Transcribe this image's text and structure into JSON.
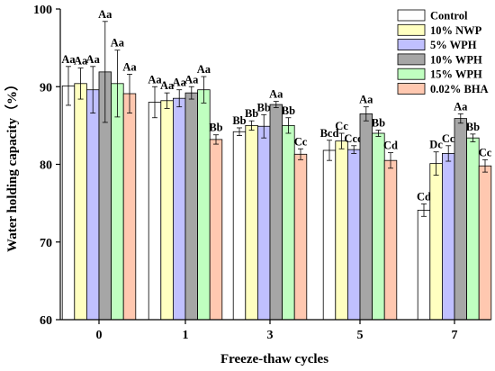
{
  "chart_data": {
    "type": "bar",
    "title": "",
    "xlabel": "Freeze-thaw cycles",
    "ylabel": "Water holding capacity（%）",
    "ylim": [
      60,
      100
    ],
    "yticks": [
      60,
      70,
      80,
      90,
      100
    ],
    "categories": [
      "0",
      "1",
      "3",
      "5",
      "7"
    ],
    "legend_position": "top-right",
    "grid": false,
    "series": [
      {
        "name": "Control",
        "color": "#ffffff",
        "values": [
          90.1,
          88.0,
          84.2,
          81.8,
          74.1
        ],
        "errors": [
          2.5,
          2.0,
          0.5,
          1.3,
          0.8
        ],
        "labels": [
          "Aa",
          "Aa",
          "Bb",
          "Bcd",
          "Cd"
        ]
      },
      {
        "name": "10% NWP",
        "color": "#ffffc0",
        "values": [
          90.4,
          88.2,
          85.0,
          83.0,
          80.1
        ],
        "errors": [
          2.0,
          1.0,
          0.6,
          1.0,
          1.5
        ],
        "labels": [
          "Aa",
          "Aa",
          "Bb",
          "Cc",
          "Dc"
        ]
      },
      {
        "name": "5% WPH",
        "color": "#c0c0ff",
        "values": [
          89.6,
          88.5,
          84.9,
          81.9,
          81.4
        ],
        "errors": [
          3.0,
          1.1,
          1.5,
          0.5,
          1.0
        ],
        "labels": [
          "Aa",
          "Aa",
          "Bb",
          "Ccd",
          "Cc"
        ]
      },
      {
        "name": "10% WPH",
        "color": "#a6a6a6",
        "values": [
          91.9,
          89.2,
          87.7,
          86.5,
          85.9
        ],
        "errors": [
          6.5,
          0.8,
          0.4,
          0.9,
          0.6
        ],
        "labels": [
          "Aa",
          "Aa",
          "Aa",
          "Aa",
          "Aa"
        ]
      },
      {
        "name": "15% WPH",
        "color": "#c0ffc0",
        "values": [
          90.4,
          89.6,
          85.0,
          84.0,
          83.4
        ],
        "errors": [
          4.3,
          1.7,
          1.0,
          0.4,
          0.5
        ],
        "labels": [
          "Aa",
          "Aa",
          "Bb",
          "Bb",
          "Bb"
        ]
      },
      {
        "name": "0.02% BHA",
        "color": "#ffc8b0",
        "values": [
          89.1,
          83.2,
          81.3,
          80.5,
          79.8
        ],
        "errors": [
          2.5,
          0.6,
          0.7,
          1.0,
          0.8
        ],
        "labels": [
          "Aa",
          "Bb",
          "Cc",
          "Cd",
          "Cc"
        ]
      }
    ]
  }
}
